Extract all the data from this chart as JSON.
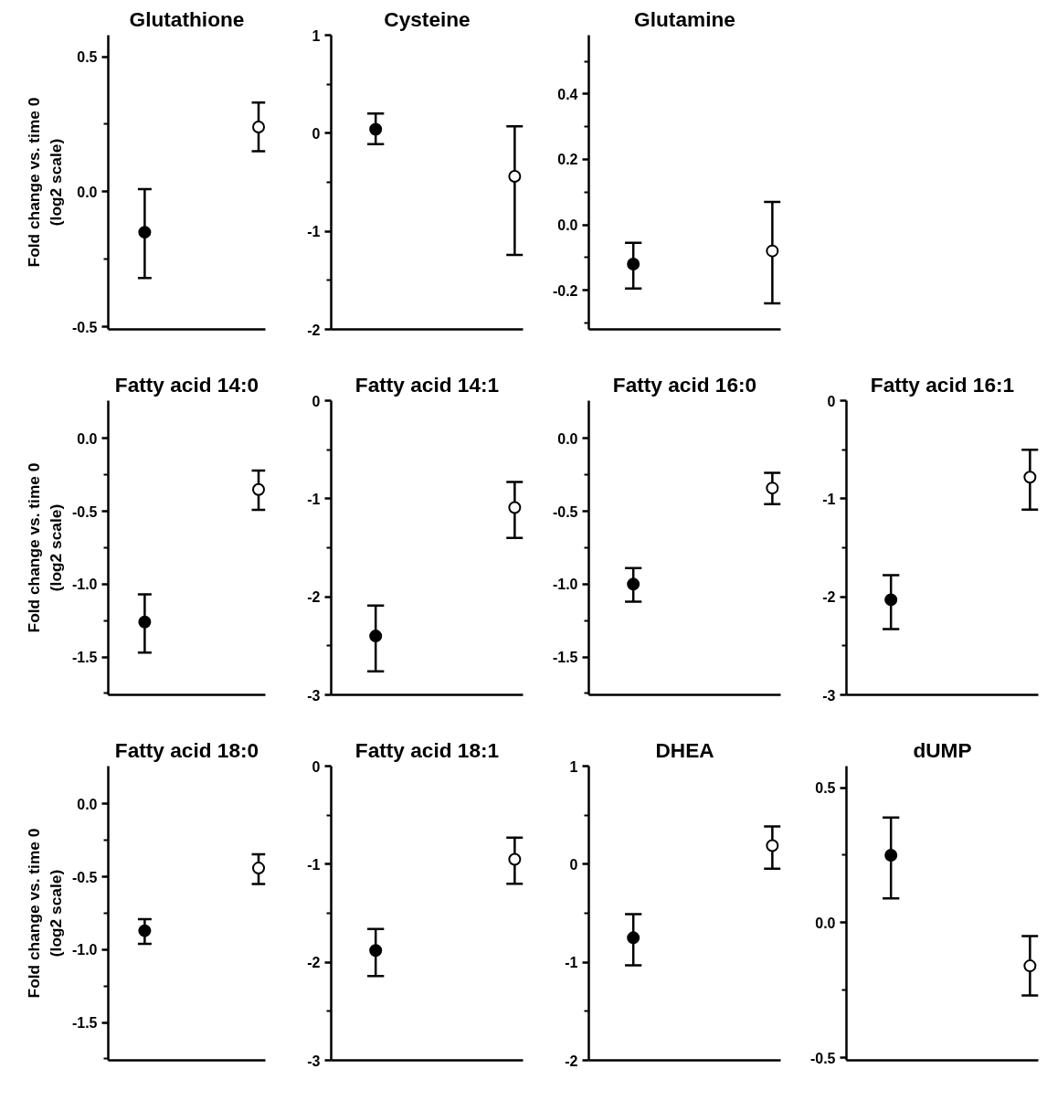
{
  "chart_data": [
    {
      "type": "scatter",
      "title": "Glutathione",
      "ylabel": "Fold change vs. time 0\n(log2 scale)",
      "categories": [
        null,
        null
      ],
      "values": [
        -0.15,
        0.24
      ],
      "errors": [
        [
          -0.32,
          0.01
        ],
        [
          0.15,
          0.33
        ]
      ],
      "colors": [
        "#000000",
        "#ffffff"
      ],
      "marker": "circle",
      "ylim": [
        -0.51,
        0.58
      ],
      "yticks": [
        {
          "value": 0.5,
          "label": "0.5"
        },
        {
          "value": 0.25,
          "label": null
        },
        {
          "value": 0,
          "label": "0.0"
        },
        {
          "value": -0.25,
          "label": null
        },
        {
          "value": -0.5,
          "label": "-0.5"
        }
      ],
      "tick_labels": "y",
      "grid": false
    },
    {
      "type": "scatter",
      "title": "Cysteine",
      "categories": [
        null,
        null
      ],
      "values": [
        0.04,
        -0.44
      ],
      "errors": [
        [
          -0.11,
          0.2
        ],
        [
          -1.24,
          0.07
        ]
      ],
      "colors": [
        "#000000",
        "#ffffff"
      ],
      "marker": "circle",
      "ylim": [
        -2,
        1
      ],
      "yticks": [
        1,
        {
          "value": 0.5,
          "label": null
        },
        0,
        {
          "value": -0.5,
          "label": null
        },
        -1,
        {
          "value": -1.5,
          "label": null
        },
        -2
      ],
      "tick_labels": "y",
      "grid": false
    },
    {
      "type": "scatter",
      "title": "Glutamine",
      "categories": [
        null,
        null
      ],
      "values": [
        -0.12,
        -0.08
      ],
      "errors": [
        [
          -0.195,
          -0.055
        ],
        [
          -0.24,
          0.07
        ]
      ],
      "colors": [
        "#000000",
        "#ffffff"
      ],
      "marker": "circle",
      "ylim": [
        -0.32,
        0.58
      ],
      "yticks": [
        {
          "value": 0.5,
          "label": null
        },
        0.4,
        {
          "value": 0.3,
          "label": null
        },
        0.2,
        {
          "value": 0.1,
          "label": null
        },
        {
          "value": 0,
          "label": "0.0"
        },
        {
          "value": -0.1,
          "label": null
        },
        -0.2,
        {
          "value": -0.3,
          "label": null
        }
      ],
      "tick_labels": "y",
      "grid": false
    },
    {
      "type": "scatter",
      "title": "Fatty acid 14:0",
      "ylabel": "Fold change vs. time 0\n(log2 scale)",
      "categories": [
        null,
        null
      ],
      "values": [
        -1.26,
        -0.35
      ],
      "errors": [
        [
          -1.47,
          -1.07
        ],
        [
          -0.49,
          -0.22
        ]
      ],
      "colors": [
        "#000000",
        "#ffffff"
      ],
      "marker": "circle",
      "ylim": [
        -1.76,
        0.26
      ],
      "yticks": [
        {
          "value": 0,
          "label": "0.0"
        },
        {
          "value": -0.25,
          "label": null
        },
        -0.5,
        {
          "value": -0.75,
          "label": null
        },
        {
          "value": -1,
          "label": "-1.0"
        },
        {
          "value": -1.25,
          "label": null
        },
        -1.5,
        {
          "value": -1.75,
          "label": null
        }
      ],
      "tick_labels": "y",
      "grid": false
    },
    {
      "type": "scatter",
      "title": "Fatty acid 14:1",
      "categories": [
        null,
        null
      ],
      "values": [
        -2.4,
        -1.09
      ],
      "errors": [
        [
          -2.76,
          -2.09
        ],
        [
          -1.4,
          -0.83
        ]
      ],
      "colors": [
        "#000000",
        "#ffffff"
      ],
      "marker": "circle",
      "ylim": [
        -3,
        0
      ],
      "yticks": [
        0,
        {
          "value": -0.5,
          "label": null
        },
        -1,
        {
          "value": -1.5,
          "label": null
        },
        -2,
        {
          "value": -2.5,
          "label": null
        },
        -3
      ],
      "tick_labels": "y",
      "grid": false
    },
    {
      "type": "scatter",
      "title": "Fatty acid 16:0",
      "categories": [
        null,
        null
      ],
      "values": [
        -1.0,
        -0.34
      ],
      "errors": [
        [
          -1.12,
          -0.89
        ],
        [
          -0.45,
          -0.235
        ]
      ],
      "colors": [
        "#000000",
        "#ffffff"
      ],
      "marker": "circle",
      "ylim": [
        -1.76,
        0.26
      ],
      "yticks": [
        {
          "value": 0,
          "label": "0.0"
        },
        {
          "value": -0.25,
          "label": null
        },
        -0.5,
        {
          "value": -0.75,
          "label": null
        },
        {
          "value": -1,
          "label": "-1.0"
        },
        {
          "value": -1.25,
          "label": null
        },
        -1.5,
        {
          "value": -1.75,
          "label": null
        }
      ],
      "tick_labels": "y",
      "grid": false
    },
    {
      "type": "scatter",
      "title": "Fatty acid 16:1",
      "categories": [
        null,
        null
      ],
      "values": [
        -2.03,
        -0.78
      ],
      "errors": [
        [
          -2.33,
          -1.78
        ],
        [
          -1.11,
          -0.5
        ]
      ],
      "colors": [
        "#000000",
        "#ffffff"
      ],
      "marker": "circle",
      "ylim": [
        -3,
        0
      ],
      "yticks": [
        0,
        {
          "value": -0.5,
          "label": null
        },
        -1,
        {
          "value": -1.5,
          "label": null
        },
        -2,
        {
          "value": -2.5,
          "label": null
        },
        -3
      ],
      "tick_labels": "y",
      "grid": false
    },
    {
      "type": "scatter",
      "title": "Fatty acid 18:0",
      "ylabel": "Fold change vs. time 0\n(log2 scale)",
      "categories": [
        null,
        null
      ],
      "values": [
        -0.87,
        -0.44
      ],
      "errors": [
        [
          -0.96,
          -0.79
        ],
        [
          -0.55,
          -0.345
        ]
      ],
      "colors": [
        "#000000",
        "#ffffff"
      ],
      "marker": "circle",
      "ylim": [
        -1.76,
        0.26
      ],
      "yticks": [
        {
          "value": 0,
          "label": "0.0"
        },
        {
          "value": -0.25,
          "label": null
        },
        -0.5,
        {
          "value": -0.75,
          "label": null
        },
        {
          "value": -1,
          "label": "-1.0"
        },
        {
          "value": -1.25,
          "label": null
        },
        -1.5,
        {
          "value": -1.75,
          "label": null
        }
      ],
      "tick_labels": "y",
      "grid": false
    },
    {
      "type": "scatter",
      "title": "Fatty acid 18:1",
      "categories": [
        null,
        null
      ],
      "values": [
        -1.88,
        -0.95
      ],
      "errors": [
        [
          -2.14,
          -1.66
        ],
        [
          -1.2,
          -0.73
        ]
      ],
      "colors": [
        "#000000",
        "#ffffff"
      ],
      "marker": "circle",
      "ylim": [
        -3,
        0
      ],
      "yticks": [
        0,
        {
          "value": -0.5,
          "label": null
        },
        -1,
        {
          "value": -1.5,
          "label": null
        },
        -2,
        {
          "value": -2.5,
          "label": null
        },
        -3
      ],
      "tick_labels": "y",
      "grid": false
    },
    {
      "type": "scatter",
      "title": "DHEA",
      "categories": [
        null,
        null
      ],
      "values": [
        -0.75,
        0.19
      ],
      "errors": [
        [
          -1.03,
          -0.51
        ],
        [
          -0.045,
          0.385
        ]
      ],
      "colors": [
        "#000000",
        "#ffffff"
      ],
      "marker": "circle",
      "ylim": [
        -2,
        1
      ],
      "yticks": [
        1,
        {
          "value": 0.5,
          "label": null
        },
        0,
        {
          "value": -0.5,
          "label": null
        },
        -1,
        {
          "value": -1.5,
          "label": null
        },
        -2
      ],
      "tick_labels": "y",
      "grid": false
    },
    {
      "type": "scatter",
      "title": "dUMP",
      "categories": [
        null,
        null
      ],
      "values": [
        0.25,
        -0.16
      ],
      "errors": [
        [
          0.09,
          0.39
        ],
        [
          -0.27,
          -0.05
        ]
      ],
      "colors": [
        "#000000",
        "#ffffff"
      ],
      "marker": "circle",
      "ylim": [
        -0.51,
        0.58
      ],
      "yticks": [
        {
          "value": 0.5,
          "label": "0.5"
        },
        {
          "value": 0.25,
          "label": null
        },
        {
          "value": 0,
          "label": "0.0"
        },
        {
          "value": -0.25,
          "label": null
        },
        {
          "value": -0.5,
          "label": "-0.5"
        }
      ],
      "tick_labels": "y",
      "grid": false
    }
  ]
}
